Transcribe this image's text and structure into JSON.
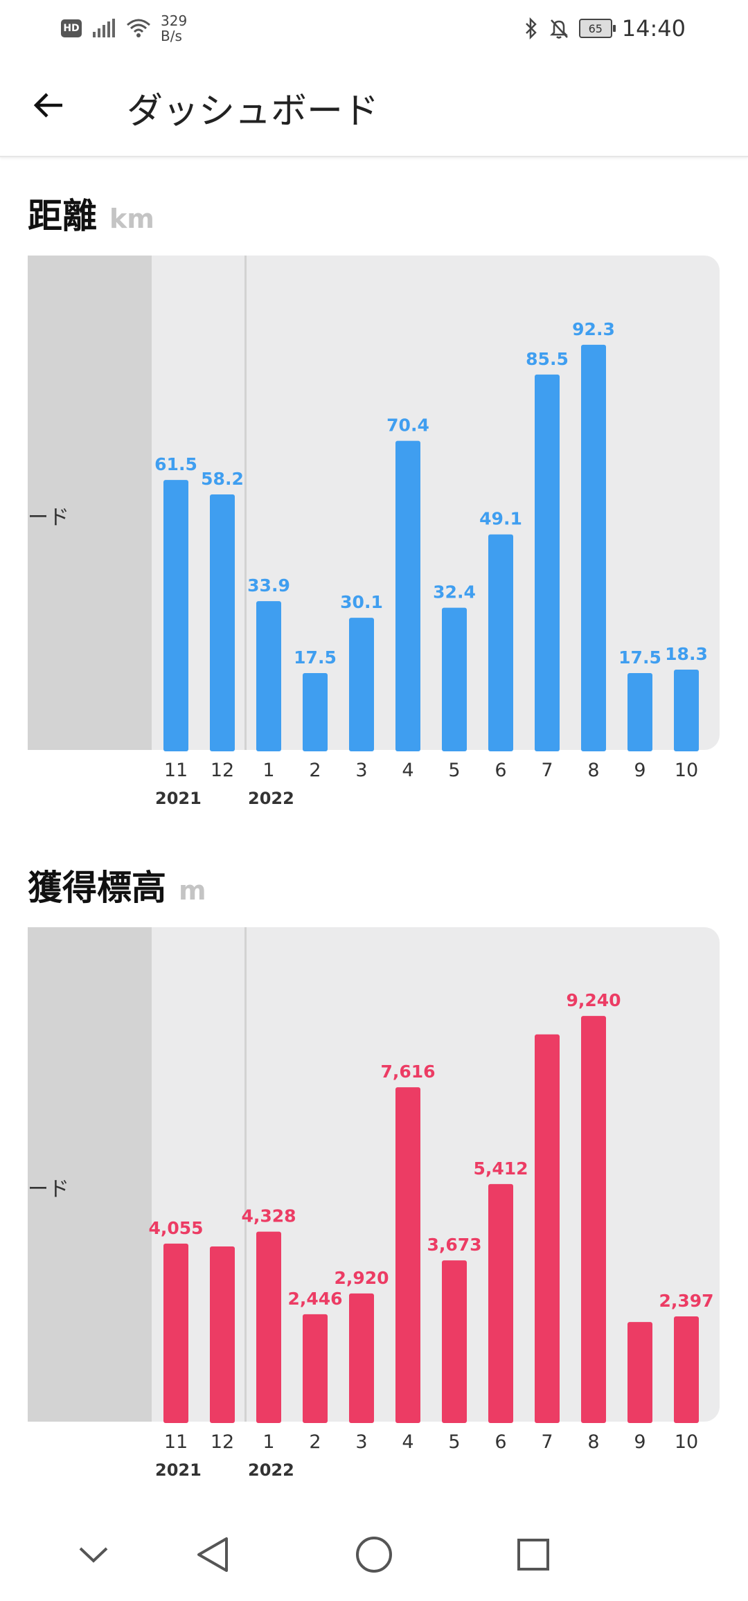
{
  "status_bar": {
    "hd_badge": "HD",
    "net_speed_value": "329",
    "net_speed_unit": "B/s",
    "battery": "65",
    "time": "14:40"
  },
  "app_bar": {
    "title": "ダッシュボード",
    "back_icon": "arrow-left-icon"
  },
  "sections": [
    {
      "title": "距離",
      "unit": "km",
      "side_label": "ード",
      "color": "#3f9ef0"
    },
    {
      "title": "獲得標高",
      "unit": "m",
      "side_label": "ード",
      "color": "#ec3c64"
    }
  ],
  "chart_data": [
    {
      "type": "bar",
      "title": "距離",
      "ylabel": "km",
      "categories": [
        "11",
        "12",
        "1",
        "2",
        "3",
        "4",
        "5",
        "6",
        "7",
        "8",
        "9",
        "10"
      ],
      "year_labels": [
        {
          "label": "2021",
          "category_index": 0
        },
        {
          "label": "2022",
          "category_index": 2
        }
      ],
      "values": [
        61.5,
        58.2,
        33.9,
        17.5,
        30.1,
        70.4,
        32.4,
        49.1,
        85.5,
        92.3,
        17.5,
        18.3
      ],
      "value_labels": [
        "61.5",
        "58.2",
        "33.9",
        "17.5",
        "30.1",
        "70.4",
        "32.4",
        "49.1",
        "85.5",
        "92.3",
        "17.5",
        "18.3"
      ],
      "ylim": [
        0,
        100
      ],
      "color": "#3f9ef0"
    },
    {
      "type": "bar",
      "title": "獲得標高",
      "ylabel": "m",
      "categories": [
        "11",
        "12",
        "1",
        "2",
        "3",
        "4",
        "5",
        "6",
        "7",
        "8",
        "9",
        "10"
      ],
      "year_labels": [
        {
          "label": "2021",
          "category_index": 0
        },
        {
          "label": "2022",
          "category_index": 2
        }
      ],
      "values": [
        4055,
        3990,
        4328,
        2446,
        2920,
        7616,
        3673,
        5412,
        8820,
        9240,
        2270,
        2397
      ],
      "value_labels": [
        "4,055",
        "",
        "4,328",
        "2,446",
        "2,920",
        "7,616",
        "3,673",
        "5,412",
        "",
        "9,240",
        "",
        "2,397"
      ],
      "ylim": [
        0,
        10000
      ],
      "color": "#ec3c64"
    }
  ],
  "nav_bar": {
    "items": [
      "chevron-down-icon",
      "back-triangle-icon",
      "home-circle-icon",
      "recents-square-icon"
    ]
  }
}
